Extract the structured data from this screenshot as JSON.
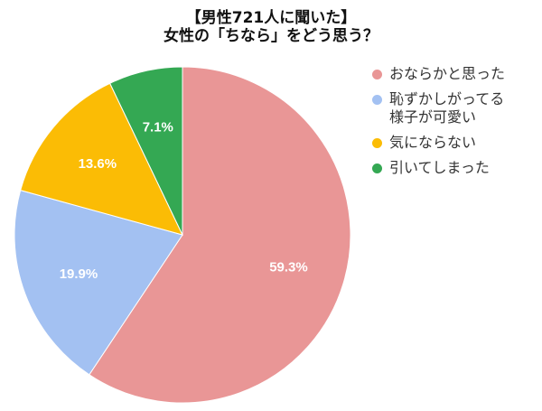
{
  "chart_data": {
    "type": "pie",
    "title": "【男性721人に聞いた】\n女性の「ちなら」をどう思う？",
    "title_lines": [
      "【男性721人に聞いた】",
      "女性の「ちなら」をどう思う？"
    ],
    "categories": [
      "おならかと思った",
      "恥ずかしがってる様子が可愛い",
      "気にならない",
      "引いてしまった"
    ],
    "values": [
      59.3,
      19.9,
      13.6,
      7.1
    ],
    "labels": [
      "59.3%",
      "19.9%",
      "13.6%",
      "7.1%"
    ],
    "colors": [
      "#E99696",
      "#A3C1F2",
      "#FBBC05",
      "#34A853"
    ],
    "legend_position": "right",
    "start_angle_deg": 0,
    "direction": "clockwise"
  },
  "legend": {
    "items": [
      {
        "label": "おならかと思った",
        "color": "#E99696"
      },
      {
        "label": "恥ずかしがってる\n様子が可愛い",
        "color": "#A3C1F2"
      },
      {
        "label": "気にならない",
        "color": "#FBBC05"
      },
      {
        "label": "引いてしまった",
        "color": "#34A853"
      }
    ]
  }
}
